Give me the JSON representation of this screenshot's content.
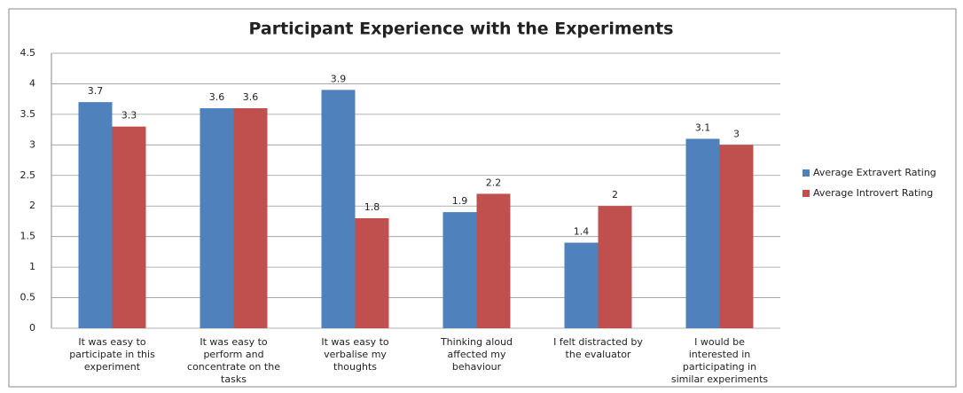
{
  "chart_data": {
    "type": "bar",
    "title": "Participant Experience with the Experiments",
    "categories": [
      "It was easy to participate in this experiment",
      "It was easy to perform and concentrate on the tasks",
      "It was easy to verbalise my thoughts",
      "Thinking aloud affected my behaviour",
      "I felt distracted by the evaluator",
      "I would be interested in participating in similar experiments"
    ],
    "series": [
      {
        "name": "Average Extravert Rating",
        "color": "#4f81bd",
        "values": [
          3.7,
          3.6,
          3.9,
          1.9,
          1.4,
          3.1
        ]
      },
      {
        "name": "Average Introvert Rating",
        "color": "#c0504d",
        "values": [
          3.3,
          3.6,
          1.8,
          2.2,
          2,
          3
        ]
      }
    ],
    "ylim": [
      0,
      4.5
    ],
    "yticks": [
      0,
      0.5,
      1,
      1.5,
      2,
      2.5,
      3,
      3.5,
      4,
      4.5
    ],
    "grid": true,
    "legend": "right",
    "data_labels": true
  }
}
